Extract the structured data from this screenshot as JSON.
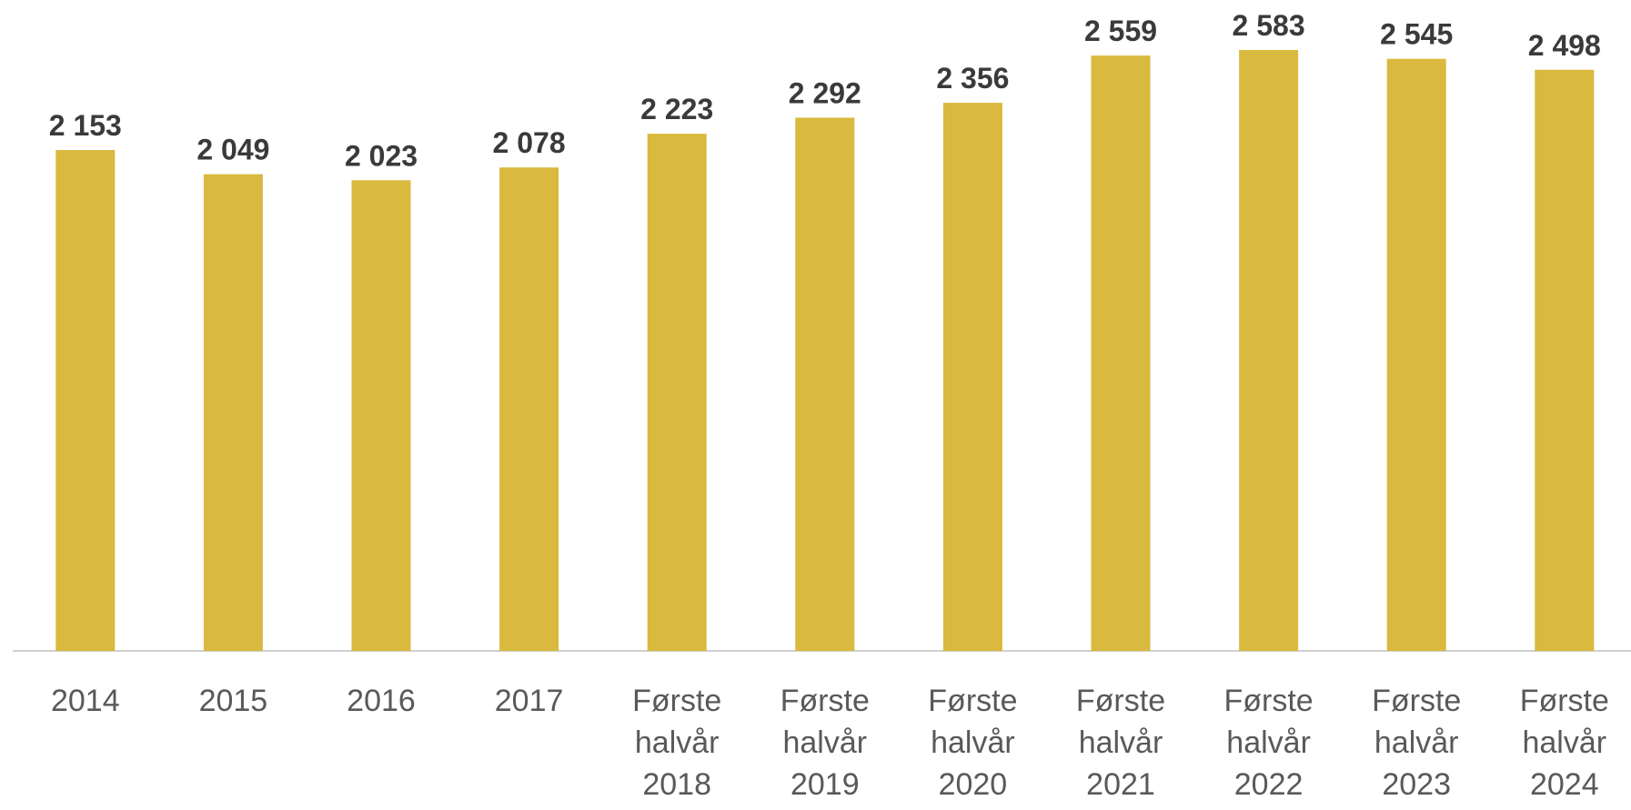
{
  "chart_data": {
    "type": "bar",
    "categories": [
      "2014",
      "2015",
      "2016",
      "2017",
      "Første halvår 2018",
      "Første halvår 2019",
      "Første halvår 2020",
      "Første halvår 2021",
      "Første halvår 2022",
      "Første halvår 2023",
      "Første halvår 2024"
    ],
    "values": [
      2153,
      2049,
      2023,
      2078,
      2223,
      2292,
      2356,
      2559,
      2583,
      2545,
      2498
    ],
    "value_labels": [
      "2 153",
      "2 049",
      "2 023",
      "2 078",
      "2 223",
      "2 292",
      "2 356",
      "2 559",
      "2 583",
      "2 545",
      "2 498"
    ],
    "color": "#d9b93e"
  }
}
